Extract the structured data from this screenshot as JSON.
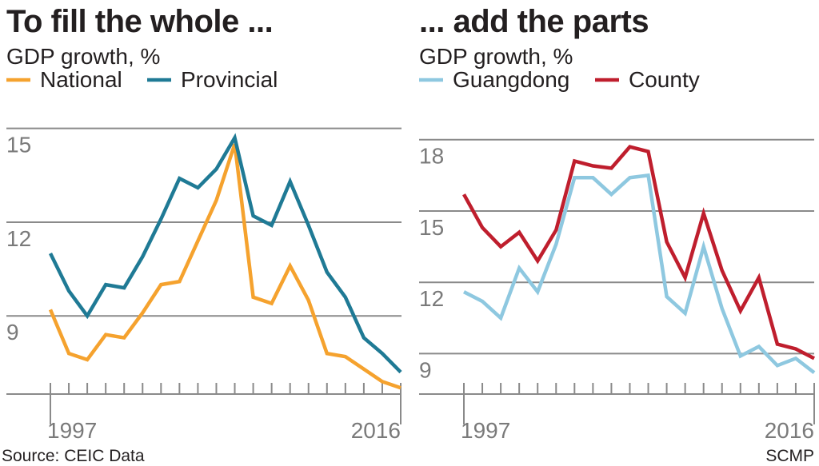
{
  "source": "Source: CEIC Data",
  "credit": "SCMP",
  "colors": {
    "national": "#f5a22e",
    "provincial": "#1f7a95",
    "guangdong": "#8ec8e0",
    "county": "#bf1e2d"
  },
  "chart_data": [
    {
      "type": "line",
      "title": "To fill the whole ...",
      "subtitle": "GDP growth, %",
      "x": [
        1997,
        1998,
        1999,
        2000,
        2001,
        2002,
        2003,
        2004,
        2005,
        2006,
        2007,
        2008,
        2009,
        2010,
        2011,
        2012,
        2013,
        2014,
        2015,
        2016
      ],
      "x_tick_labels": [
        "1997",
        "2016"
      ],
      "y_ticks": [
        9,
        12,
        15
      ],
      "ylim": [
        6.5,
        15.4
      ],
      "grid": true,
      "legend_position": "top-left",
      "series": [
        {
          "name": "National",
          "color": "#f5a22e",
          "values": [
            9.2,
            7.8,
            7.6,
            8.4,
            8.3,
            9.1,
            10.0,
            10.1,
            11.4,
            12.7,
            14.5,
            9.6,
            9.4,
            10.6,
            9.5,
            7.8,
            7.7,
            7.3,
            6.9,
            6.7
          ]
        },
        {
          "name": "Provincial",
          "color": "#1f7a95",
          "values": [
            11.0,
            9.8,
            9.0,
            10.0,
            9.9,
            10.9,
            12.1,
            13.4,
            13.1,
            13.7,
            14.7,
            12.2,
            11.9,
            13.3,
            11.9,
            10.4,
            9.6,
            8.3,
            7.8,
            7.2
          ]
        }
      ]
    },
    {
      "type": "line",
      "title": "... add the parts",
      "subtitle": "GDP growth, %",
      "x": [
        1997,
        1998,
        1999,
        2000,
        2001,
        2002,
        2003,
        2004,
        2005,
        2006,
        2007,
        2008,
        2009,
        2010,
        2011,
        2012,
        2013,
        2014,
        2015,
        2016
      ],
      "x_tick_labels": [
        "1997",
        "2016"
      ],
      "y_ticks": [
        9,
        12,
        15,
        18
      ],
      "ylim": [
        7.3,
        19.0
      ],
      "grid": true,
      "legend_position": "top-left",
      "series": [
        {
          "name": "Guangdong",
          "color": "#8ec8e0",
          "values": [
            11.6,
            11.2,
            10.5,
            12.6,
            11.6,
            13.6,
            16.4,
            16.4,
            15.7,
            16.4,
            16.5,
            11.4,
            10.7,
            13.5,
            10.9,
            8.9,
            9.3,
            8.5,
            8.8,
            8.2
          ]
        },
        {
          "name": "County",
          "color": "#bf1e2d",
          "values": [
            15.7,
            14.3,
            13.5,
            14.1,
            12.9,
            14.2,
            17.1,
            16.9,
            16.8,
            17.7,
            17.5,
            13.7,
            12.2,
            14.9,
            12.5,
            10.8,
            12.2,
            9.4,
            9.2,
            8.8
          ]
        }
      ]
    }
  ]
}
